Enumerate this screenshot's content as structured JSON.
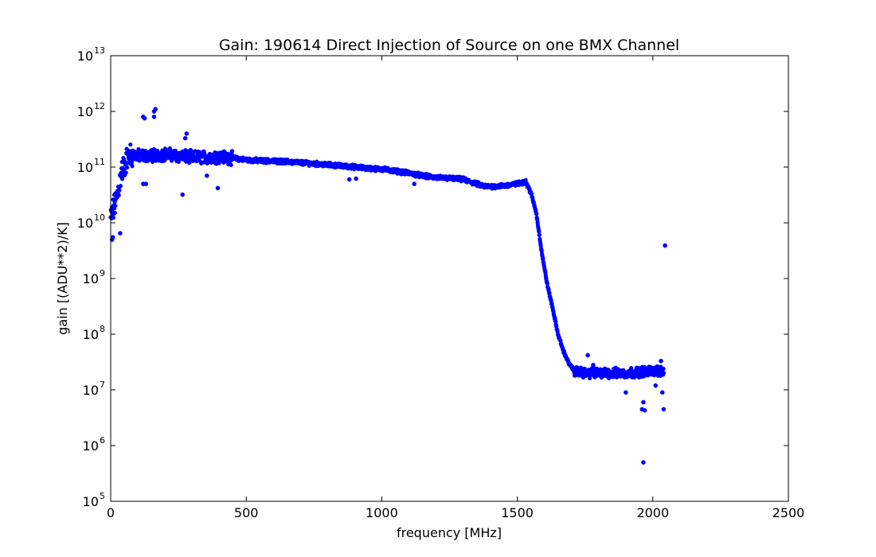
{
  "chart_data": {
    "type": "scatter",
    "title": "Gain: 190614 Direct Injection of Source on one BMX Channel",
    "xlabel": "frequency [MHz]",
    "ylabel": "gain [(ADU**2)/K]",
    "xlim": [
      0,
      2500
    ],
    "ylim": [
      100000.0,
      10000000000000.0
    ],
    "yscale": "log",
    "grid": false,
    "marker_color": "#0000ff",
    "x_ticks": [
      {
        "value": 0,
        "label": "0"
      },
      {
        "value": 500,
        "label": "500"
      },
      {
        "value": 1000,
        "label": "1000"
      },
      {
        "value": 1500,
        "label": "1500"
      },
      {
        "value": 2000,
        "label": "2000"
      },
      {
        "value": 2500,
        "label": "2500"
      }
    ],
    "y_ticks": [
      {
        "value": 100000.0,
        "base": "10",
        "exp": "5"
      },
      {
        "value": 1000000.0,
        "base": "10",
        "exp": "6"
      },
      {
        "value": 10000000.0,
        "base": "10",
        "exp": "7"
      },
      {
        "value": 100000000.0,
        "base": "10",
        "exp": "8"
      },
      {
        "value": 1000000000.0,
        "base": "10",
        "exp": "9"
      },
      {
        "value": 10000000000.0,
        "base": "10",
        "exp": "10"
      },
      {
        "value": 100000000000.0,
        "base": "10",
        "exp": "11"
      },
      {
        "value": 1000000000000.0,
        "base": "10",
        "exp": "12"
      },
      {
        "value": 10000000000000.0,
        "base": "10",
        "exp": "13"
      }
    ],
    "trend_points": [
      [
        0,
        12000000000.0
      ],
      [
        20,
        25000000000.0
      ],
      [
        40,
        80000000000.0
      ],
      [
        60,
        140000000000.0
      ],
      [
        80,
        170000000000.0
      ],
      [
        100,
        160000000000.0
      ],
      [
        150,
        160000000000.0
      ],
      [
        200,
        170000000000.0
      ],
      [
        250,
        160000000000.0
      ],
      [
        300,
        150000000000.0
      ],
      [
        350,
        150000000000.0
      ],
      [
        400,
        155000000000.0
      ],
      [
        450,
        145000000000.0
      ],
      [
        500,
        135000000000.0
      ],
      [
        550,
        130000000000.0
      ],
      [
        600,
        128000000000.0
      ],
      [
        650,
        125000000000.0
      ],
      [
        700,
        120000000000.0
      ],
      [
        750,
        115000000000.0
      ],
      [
        800,
        110000000000.0
      ],
      [
        850,
        105000000000.0
      ],
      [
        900,
        100000000000.0
      ],
      [
        950,
        95000000000.0
      ],
      [
        1000,
        92000000000.0
      ],
      [
        1050,
        85000000000.0
      ],
      [
        1100,
        78000000000.0
      ],
      [
        1150,
        70000000000.0
      ],
      [
        1200,
        65000000000.0
      ],
      [
        1250,
        63000000000.0
      ],
      [
        1300,
        60000000000.0
      ],
      [
        1350,
        50000000000.0
      ],
      [
        1380,
        45000000000.0
      ],
      [
        1400,
        45000000000.0
      ],
      [
        1450,
        46000000000.0
      ],
      [
        1500,
        50000000000.0
      ],
      [
        1530,
        55000000000.0
      ],
      [
        1550,
        35000000000.0
      ],
      [
        1570,
        15000000000.0
      ],
      [
        1590,
        3000000000.0
      ],
      [
        1610,
        800000000.0
      ],
      [
        1630,
        300000000.0
      ],
      [
        1650,
        100000000.0
      ],
      [
        1670,
        50000000.0
      ],
      [
        1690,
        30000000.0
      ],
      [
        1710,
        22000000.0
      ],
      [
        1750,
        20000000.0
      ],
      [
        1800,
        20000000.0
      ],
      [
        1850,
        20000000.0
      ],
      [
        1900,
        20000000.0
      ],
      [
        1950,
        21000000.0
      ],
      [
        2000,
        22000000.0
      ],
      [
        2040,
        22000000.0
      ]
    ],
    "outliers": [
      [
        120,
        800000000000.0
      ],
      [
        125,
        750000000000.0
      ],
      [
        160,
        1000000000000.0
      ],
      [
        165,
        1100000000000.0
      ],
      [
        160,
        800000000000.0
      ],
      [
        280,
        400000000000.0
      ],
      [
        275,
        330000000000.0
      ],
      [
        265,
        32000000000.0
      ],
      [
        120,
        50000000000.0
      ],
      [
        130,
        50000000000.0
      ],
      [
        35,
        6500000000.0
      ],
      [
        5,
        5000000000.0
      ],
      [
        8,
        5500000000.0
      ],
      [
        395,
        42000000000.0
      ],
      [
        355,
        70000000000.0
      ],
      [
        880,
        60000000000.0
      ],
      [
        905,
        62000000000.0
      ],
      [
        1120,
        50000000000.0
      ],
      [
        2045,
        3900000000.0
      ],
      [
        1965,
        500000.0
      ],
      [
        1960,
        4500000.0
      ],
      [
        1970,
        4300000.0
      ],
      [
        1965,
        6000000.0
      ],
      [
        2040,
        4500000.0
      ],
      [
        2035,
        9000000.0
      ],
      [
        1900,
        9000000.0
      ],
      [
        2030,
        33000000.0
      ],
      [
        1760,
        42000000.0
      ],
      [
        1780,
        28000000.0
      ],
      [
        2010,
        12000000.0
      ]
    ]
  }
}
